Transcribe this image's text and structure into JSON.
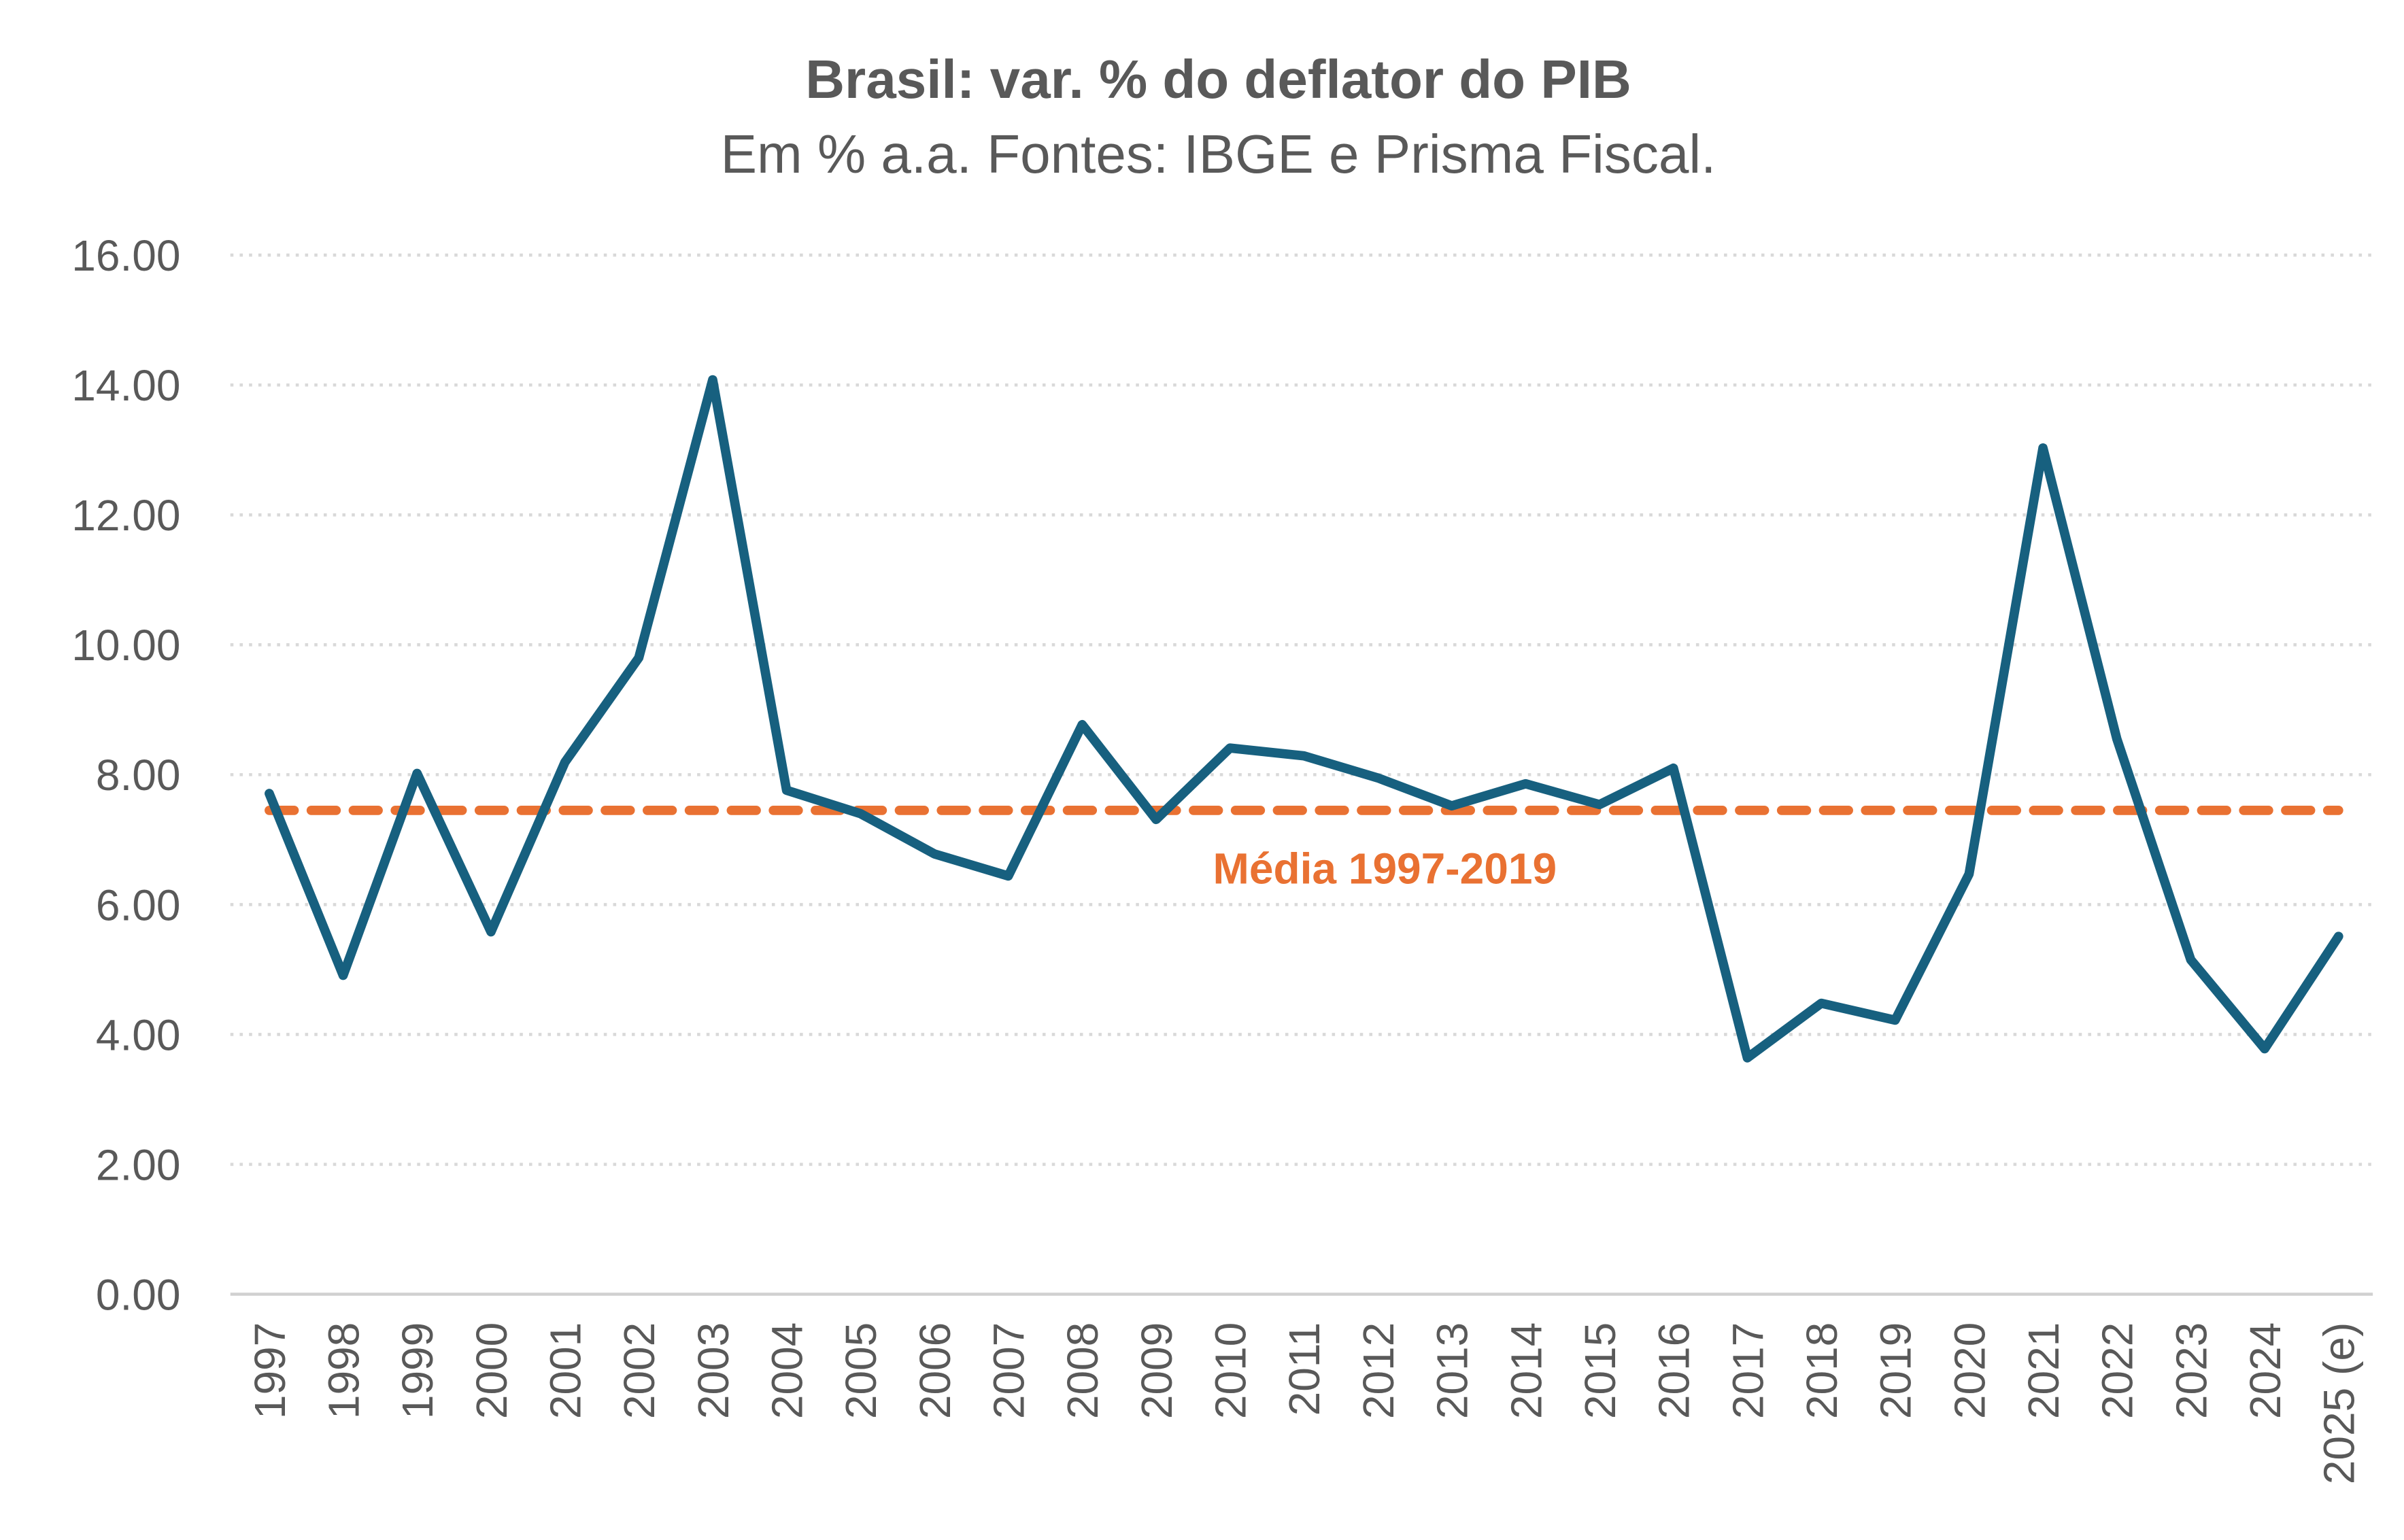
{
  "chart_data": {
    "type": "line",
    "title": "Brasil: var. % do deflator do PIB",
    "subtitle": "Em % a.a. Fontes: IBGE e Prisma Fiscal.",
    "xlabel": "",
    "ylabel": "",
    "ylim": [
      0,
      16
    ],
    "yticks": [
      "0.00",
      "2.00",
      "4.00",
      "6.00",
      "8.00",
      "10.00",
      "12.00",
      "14.00",
      "16.00"
    ],
    "grid": true,
    "categories": [
      "1997",
      "1998",
      "1999",
      "2000",
      "2001",
      "2002",
      "2003",
      "2004",
      "2005",
      "2006",
      "2007",
      "2008",
      "2009",
      "2010",
      "2011",
      "2012",
      "2013",
      "2014",
      "2015",
      "2016",
      "2017",
      "2018",
      "2019",
      "2020",
      "2021",
      "2022",
      "2023",
      "2024",
      "2025 (e)"
    ],
    "series": [
      {
        "name": "Deflator do PIB",
        "color": "#17607F",
        "values": [
          7.71,
          4.91,
          8.02,
          5.58,
          8.19,
          9.8,
          14.08,
          7.76,
          7.4,
          6.78,
          6.44,
          8.77,
          7.31,
          8.41,
          8.29,
          7.95,
          7.52,
          7.86,
          7.54,
          8.1,
          3.64,
          4.48,
          4.22,
          6.47,
          13.03,
          8.55,
          5.15,
          3.78,
          5.51
        ]
      }
    ],
    "reference_line": {
      "label": "Média 1997-2019",
      "value": 7.45,
      "color": "#E97132"
    }
  }
}
